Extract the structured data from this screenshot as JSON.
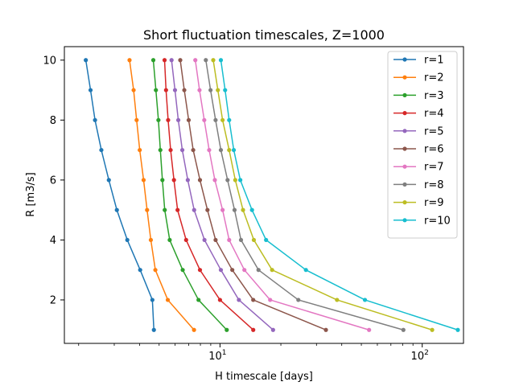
{
  "chart_data": {
    "type": "line",
    "title": "Short fluctuation timescales, Z=1000",
    "xlabel": "H timescale [days]",
    "ylabel": "R [m3/s]",
    "xscale": "log",
    "xlim": [
      1.7,
      160
    ],
    "ylim": [
      0.55,
      10.45
    ],
    "xticks": [
      {
        "value": 10,
        "label": "10",
        "base": "10",
        "exp": "1"
      },
      {
        "value": 100,
        "label": "10",
        "base": "10",
        "exp": "2"
      }
    ],
    "yticks": [
      2,
      4,
      6,
      8,
      10
    ],
    "legend_position": "top-right",
    "grid": false,
    "series": [
      {
        "name": "r=1",
        "color": "#1f77b4",
        "points": [
          [
            2.17,
            10
          ],
          [
            2.29,
            9
          ],
          [
            2.41,
            8
          ],
          [
            2.59,
            7
          ],
          [
            2.82,
            6
          ],
          [
            3.09,
            5
          ],
          [
            3.48,
            4
          ],
          [
            4.03,
            3
          ],
          [
            4.63,
            2
          ],
          [
            4.71,
            1
          ]
        ]
      },
      {
        "name": "r=2",
        "color": "#ff7f0e",
        "points": [
          [
            3.57,
            10
          ],
          [
            3.74,
            9
          ],
          [
            3.87,
            8
          ],
          [
            4.01,
            7
          ],
          [
            4.19,
            6
          ],
          [
            4.36,
            5
          ],
          [
            4.55,
            4
          ],
          [
            4.79,
            3
          ],
          [
            5.52,
            2
          ],
          [
            7.44,
            1
          ]
        ]
      },
      {
        "name": "r=3",
        "color": "#2ca02c",
        "points": [
          [
            4.68,
            10
          ],
          [
            4.82,
            9
          ],
          [
            4.96,
            8
          ],
          [
            5.07,
            7
          ],
          [
            5.19,
            6
          ],
          [
            5.33,
            5
          ],
          [
            5.64,
            4
          ],
          [
            6.54,
            3
          ],
          [
            7.83,
            2
          ],
          [
            10.8,
            1
          ]
        ]
      },
      {
        "name": "r=4",
        "color": "#d62728",
        "points": [
          [
            5.32,
            10
          ],
          [
            5.41,
            9
          ],
          [
            5.54,
            8
          ],
          [
            5.7,
            7
          ],
          [
            5.92,
            6
          ],
          [
            6.17,
            5
          ],
          [
            6.8,
            4
          ],
          [
            7.96,
            3
          ],
          [
            10.0,
            2
          ],
          [
            14.6,
            1
          ]
        ]
      },
      {
        "name": "r=5",
        "color": "#9467bd",
        "points": [
          [
            5.76,
            10
          ],
          [
            5.99,
            9
          ],
          [
            6.22,
            8
          ],
          [
            6.51,
            7
          ],
          [
            6.93,
            6
          ],
          [
            7.45,
            5
          ],
          [
            8.38,
            4
          ],
          [
            10.1,
            3
          ],
          [
            12.4,
            2
          ],
          [
            18.3,
            1
          ]
        ]
      },
      {
        "name": "r=6",
        "color": "#8c564b",
        "points": [
          [
            6.36,
            10
          ],
          [
            6.66,
            9
          ],
          [
            7.0,
            8
          ],
          [
            7.37,
            7
          ],
          [
            7.96,
            6
          ],
          [
            8.67,
            5
          ],
          [
            9.51,
            4
          ],
          [
            11.5,
            3
          ],
          [
            14.6,
            2
          ],
          [
            33.4,
            1
          ]
        ]
      },
      {
        "name": "r=7",
        "color": "#e377c2",
        "points": [
          [
            7.55,
            10
          ],
          [
            7.92,
            9
          ],
          [
            8.36,
            8
          ],
          [
            8.84,
            7
          ],
          [
            9.43,
            6
          ],
          [
            10.3,
            5
          ],
          [
            11.1,
            4
          ],
          [
            13.2,
            3
          ],
          [
            17.7,
            2
          ],
          [
            54.6,
            1
          ]
        ]
      },
      {
        "name": "r=8",
        "color": "#7f7f7f",
        "points": [
          [
            8.51,
            10
          ],
          [
            8.98,
            9
          ],
          [
            9.51,
            8
          ],
          [
            10.1,
            7
          ],
          [
            10.9,
            6
          ],
          [
            11.8,
            5
          ],
          [
            12.7,
            4
          ],
          [
            15.5,
            3
          ],
          [
            24.4,
            2
          ],
          [
            80.7,
            1
          ]
        ]
      },
      {
        "name": "r=9",
        "color": "#bcbd22",
        "points": [
          [
            9.26,
            10
          ],
          [
            9.76,
            9
          ],
          [
            10.3,
            8
          ],
          [
            11.1,
            7
          ],
          [
            11.9,
            6
          ],
          [
            13.0,
            5
          ],
          [
            14.7,
            4
          ],
          [
            18.1,
            3
          ],
          [
            37.9,
            2
          ],
          [
            112,
            1
          ]
        ]
      },
      {
        "name": "r=10",
        "color": "#17becf",
        "points": [
          [
            10.1,
            10
          ],
          [
            10.6,
            9
          ],
          [
            11.1,
            8
          ],
          [
            11.7,
            7
          ],
          [
            12.6,
            6
          ],
          [
            14.4,
            5
          ],
          [
            16.9,
            4
          ],
          [
            26.6,
            3
          ],
          [
            52.1,
            2
          ],
          [
            150,
            1
          ]
        ]
      }
    ]
  }
}
